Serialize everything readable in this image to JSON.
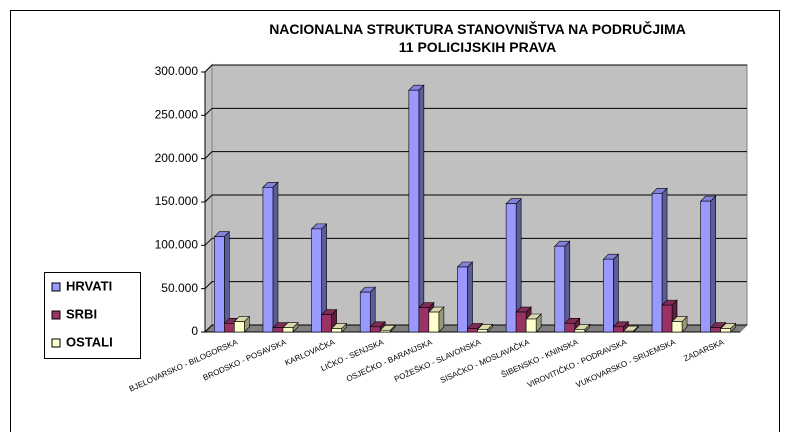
{
  "chart_data": {
    "type": "bar3d",
    "title": "NACIONALNA STRUKTURA STANOVNIŠTVA NA PODRUČJIMA\n11 POLICIJSKIH PRAVA",
    "categories": [
      "BJELOVARSKO - BILOGORSKA",
      "BRODSKO - POSAVSKA",
      "KARLOVAČKA",
      "LIČKO - SENJSKA",
      "OSJEČKO - BARANJSKA",
      "POŽEŠKO - SLAVONSKA",
      "SISAČKO - MOSLAVAČKA",
      "ŠIBENSKO - KNINSKA",
      "VIROVITIČKO - PODRAVSKA",
      "VUKOVARSKO - SRIJEMSKA",
      "ZADARSKA"
    ],
    "series": [
      {
        "name": "HRVATI",
        "color": "#9999ff",
        "values": [
          110000,
          167000,
          119000,
          46000,
          279000,
          75000,
          148000,
          99000,
          84000,
          160000,
          151000
        ]
      },
      {
        "name": "SRBI",
        "color": "#993366",
        "values": [
          10000,
          5000,
          20000,
          6000,
          28000,
          4000,
          23000,
          10000,
          6000,
          31000,
          5000
        ]
      },
      {
        "name": "OSTALI",
        "color": "#ffffcc",
        "values": [
          12000,
          5000,
          4000,
          2000,
          23000,
          3000,
          15000,
          3000,
          1000,
          12000,
          4000
        ]
      }
    ],
    "ylim": [
      0,
      300000
    ],
    "yticks": [
      0,
      {
        "value": 50000,
        "label": "50.000"
      },
      {
        "value": 100000,
        "label": "100.000"
      },
      {
        "value": 150000,
        "label": "150.000"
      },
      {
        "value": 200000,
        "label": "200.000"
      },
      {
        "value": 250000,
        "label": "250.000"
      },
      {
        "value": 300000,
        "label": "300.000"
      }
    ],
    "grid": true,
    "legend": "left"
  }
}
